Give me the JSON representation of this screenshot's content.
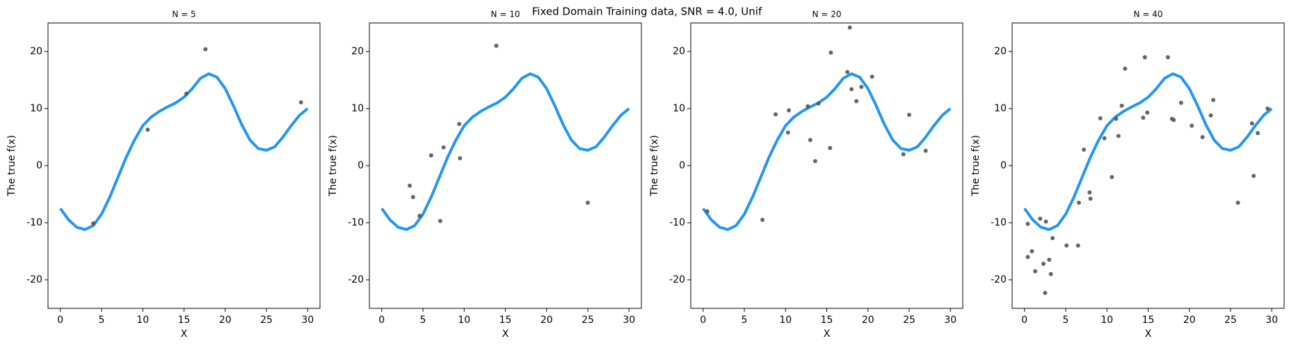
{
  "title": "Fixed Domain Training data, SNR = 4.0, Unif",
  "chart_data": [
    {
      "type": "scatter",
      "title": "N = 5",
      "xlabel": "X",
      "ylabel": "The true f(x)",
      "xlim": [
        -1.5,
        31.5
      ],
      "ylim": [
        -25,
        25
      ],
      "xticks": [
        0,
        5,
        10,
        15,
        20,
        25,
        30
      ],
      "yticks": [
        -20,
        -10,
        0,
        10,
        20
      ],
      "series": [
        {
          "type": "line",
          "color": "#2196f3",
          "x": [
            0,
            1,
            2,
            3,
            4,
            5,
            6,
            7,
            8,
            9,
            10,
            11,
            12,
            13,
            14,
            15,
            16,
            17,
            18,
            19,
            20,
            21,
            22,
            23,
            24,
            25,
            26,
            27,
            28,
            29,
            30
          ],
          "values": [
            -7.5,
            -9.5,
            -10.8,
            -11.2,
            -10.5,
            -8.5,
            -5.5,
            -2,
            1.5,
            4.5,
            7,
            8.5,
            9.5,
            10.3,
            11,
            12,
            13.5,
            15.3,
            16.1,
            15.5,
            13.5,
            10.5,
            7.2,
            4.5,
            3,
            2.7,
            3.3,
            5,
            7,
            8.8,
            10
          ]
        },
        {
          "type": "scatter",
          "color": "#555555",
          "x": [
            4,
            10.6,
            15.3,
            17.6,
            29.2
          ],
          "values": [
            -10.1,
            6.3,
            12.6,
            20.4,
            11.1
          ]
        }
      ]
    },
    {
      "type": "scatter",
      "title": "N = 10",
      "xlabel": "X",
      "ylabel": "The true f(x)",
      "xlim": [
        -1.5,
        31.5
      ],
      "ylim": [
        -25,
        25
      ],
      "xticks": [
        0,
        5,
        10,
        15,
        20,
        25,
        30
      ],
      "yticks": [
        -20,
        -10,
        0,
        10,
        20
      ],
      "series": [
        {
          "type": "line",
          "color": "#2196f3",
          "x": [
            0,
            1,
            2,
            3,
            4,
            5,
            6,
            7,
            8,
            9,
            10,
            11,
            12,
            13,
            14,
            15,
            16,
            17,
            18,
            19,
            20,
            21,
            22,
            23,
            24,
            25,
            26,
            27,
            28,
            29,
            30
          ],
          "values": [
            -7.5,
            -9.5,
            -10.8,
            -11.2,
            -10.5,
            -8.5,
            -5.5,
            -2,
            1.5,
            4.5,
            7,
            8.5,
            9.5,
            10.3,
            11,
            12,
            13.5,
            15.3,
            16.1,
            15.5,
            13.5,
            10.5,
            7.2,
            4.5,
            3,
            2.7,
            3.3,
            5,
            7,
            8.8,
            10
          ]
        },
        {
          "type": "scatter",
          "color": "#555555",
          "x": [
            3.4,
            3.8,
            4.6,
            6.0,
            7.1,
            7.5,
            9.4,
            9.5,
            13.9,
            25
          ],
          "values": [
            -3.5,
            -5.5,
            -8.8,
            1.8,
            -9.7,
            3.2,
            7.3,
            1.3,
            21,
            -6.5
          ]
        }
      ]
    },
    {
      "type": "scatter",
      "title": "N = 20",
      "xlabel": "X",
      "ylabel": "The true f(x)",
      "xlim": [
        -1.5,
        31.5
      ],
      "ylim": [
        -25,
        25
      ],
      "xticks": [
        0,
        5,
        10,
        15,
        20,
        25,
        30
      ],
      "yticks": [
        -20,
        -10,
        0,
        10,
        20
      ],
      "series": [
        {
          "type": "line",
          "color": "#2196f3",
          "x": [
            0,
            1,
            2,
            3,
            4,
            5,
            6,
            7,
            8,
            9,
            10,
            11,
            12,
            13,
            14,
            15,
            16,
            17,
            18,
            19,
            20,
            21,
            22,
            23,
            24,
            25,
            26,
            27,
            28,
            29,
            30
          ],
          "values": [
            -7.5,
            -9.5,
            -10.8,
            -11.2,
            -10.5,
            -8.5,
            -5.5,
            -2,
            1.5,
            4.5,
            7,
            8.5,
            9.5,
            10.3,
            11,
            12,
            13.5,
            15.3,
            16.1,
            15.5,
            13.5,
            10.5,
            7.2,
            4.5,
            3,
            2.7,
            3.3,
            5,
            7,
            8.8,
            10
          ]
        },
        {
          "type": "scatter",
          "color": "#555555",
          "x": [
            0.5,
            7.2,
            8.8,
            10.3,
            10.4,
            12.7,
            13.0,
            13.6,
            14.0,
            15.4,
            15.5,
            17.5,
            17.8,
            18.0,
            18.6,
            19.2,
            20.5,
            24.3,
            25.0,
            27.0
          ],
          "values": [
            -8,
            -9.5,
            9,
            5.8,
            9.7,
            10.4,
            4.5,
            0.8,
            10.9,
            3.1,
            19.8,
            16.4,
            24.2,
            13.4,
            11.3,
            13.8,
            15.6,
            2.0,
            8.9,
            2.6
          ]
        }
      ]
    },
    {
      "type": "scatter",
      "title": "N = 40",
      "xlabel": "X",
      "ylabel": "The true f(x)",
      "xlim": [
        -1.5,
        31.5
      ],
      "ylim": [
        -25,
        25
      ],
      "xticks": [
        0,
        5,
        10,
        15,
        20,
        25,
        30
      ],
      "yticks": [
        -20,
        -10,
        0,
        10,
        20
      ],
      "series": [
        {
          "type": "line",
          "color": "#2196f3",
          "x": [
            0,
            1,
            2,
            3,
            4,
            5,
            6,
            7,
            8,
            9,
            10,
            11,
            12,
            13,
            14,
            15,
            16,
            17,
            18,
            19,
            20,
            21,
            22,
            23,
            24,
            25,
            26,
            27,
            28,
            29,
            30
          ],
          "values": [
            -7.5,
            -9.5,
            -10.8,
            -11.2,
            -10.5,
            -8.5,
            -5.5,
            -2,
            1.5,
            4.5,
            7,
            8.5,
            9.5,
            10.3,
            11,
            12,
            13.5,
            15.3,
            16.1,
            15.5,
            13.5,
            10.5,
            7.2,
            4.5,
            3,
            2.7,
            3.3,
            5,
            7,
            8.8,
            10
          ]
        },
        {
          "type": "scatter",
          "color": "#555555",
          "x": [
            0.4,
            0.4,
            0.9,
            1.3,
            1.9,
            2.3,
            2.5,
            2.6,
            3.0,
            3.2,
            3.4,
            5.1,
            6.5,
            6.6,
            7.2,
            7.9,
            8.0,
            9.2,
            9.7,
            10.6,
            11.1,
            11.4,
            11.8,
            12.2,
            14.4,
            14.6,
            14.9,
            17.4,
            17.9,
            18.1,
            19.0,
            20.3,
            21.6,
            22.6,
            22.9,
            25.9,
            27.6,
            27.8,
            28.3,
            29.5
          ],
          "values": [
            -16,
            -10.2,
            -15,
            -18.5,
            -9.3,
            -17.2,
            -22.3,
            -9.8,
            -16.5,
            -19,
            -12.7,
            -14,
            -14,
            -6.5,
            2.8,
            -4.7,
            -5.8,
            8.3,
            4.8,
            -2,
            8.2,
            5.2,
            10.5,
            17,
            8.4,
            19,
            9.3,
            19,
            8.2,
            8,
            11,
            7,
            5,
            8.8,
            11.5,
            -6.5,
            7.4,
            -1.8,
            5.7,
            10
          ]
        }
      ]
    }
  ]
}
